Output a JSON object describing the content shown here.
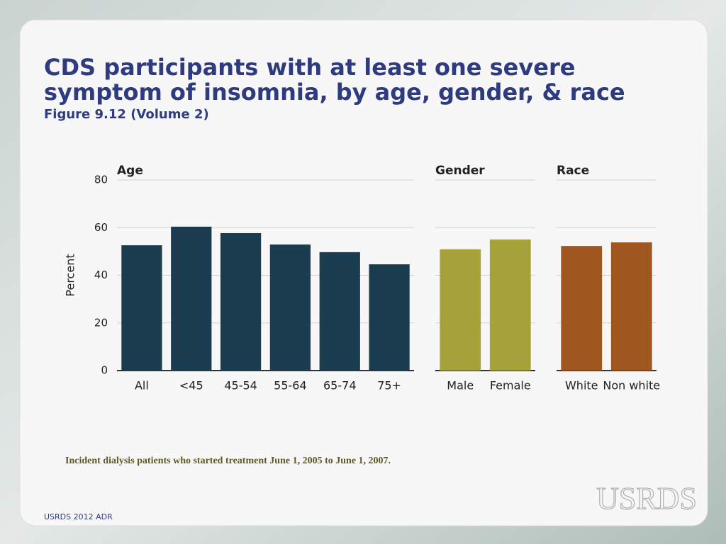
{
  "slide": {
    "title_lines": [
      "CDS participants with at least one severe",
      "symptom of insomnia, by age, gender, & race"
    ],
    "subtitle": "Figure 9.12 (Volume 2)",
    "note": "Incident dialysis patients who started treatment June 1, 2005 to June 1, 2007.",
    "footer": "USRDS 2012 ADR",
    "logo": "USRDS"
  },
  "chart_data": [
    {
      "type": "bar",
      "title": "Age",
      "ylabel": "Percent",
      "categories": [
        "All",
        "<45",
        "45-54",
        "55-64",
        "65-74",
        "75+"
      ],
      "values": [
        52.6,
        60.4,
        57.7,
        52.9,
        49.7,
        44.6
      ],
      "color": "#1b3d4f",
      "ylim": [
        0,
        80
      ],
      "yticks": [
        0,
        20,
        40,
        60,
        80
      ],
      "grid": true
    },
    {
      "type": "bar",
      "title": "Gender",
      "categories": [
        "Male",
        "Female"
      ],
      "values": [
        50.9,
        55.0
      ],
      "color": "#a5a23a",
      "ylim": [
        0,
        80
      ],
      "yticks": [
        0,
        20,
        40,
        60,
        80
      ],
      "grid": true
    },
    {
      "type": "bar",
      "title": "Race",
      "categories": [
        "White",
        "Non white"
      ],
      "values": [
        52.3,
        53.8
      ],
      "color": "#a0561f",
      "ylim": [
        0,
        80
      ],
      "yticks": [
        0,
        20,
        40,
        60,
        80
      ],
      "grid": true
    }
  ]
}
